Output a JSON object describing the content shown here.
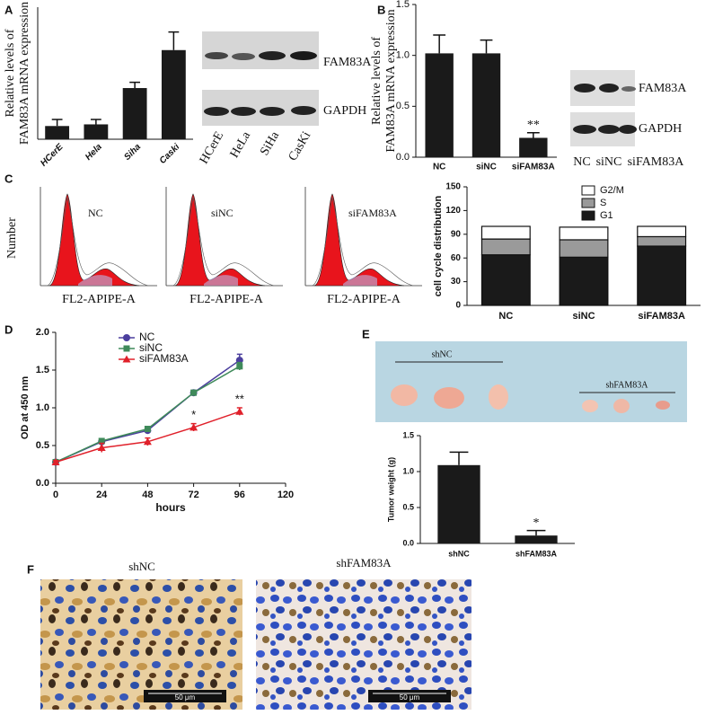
{
  "panel_labels": [
    "A",
    "B",
    "C",
    "D",
    "E",
    "F"
  ],
  "blots": [
    {
      "labels": [
        "FAM83A",
        "GAPDH"
      ],
      "lanes": [
        "HCerE",
        "HeLa",
        "SiHa",
        "CasKi"
      ]
    },
    {
      "labels": [
        "FAM83A",
        "GAPDH"
      ],
      "lanes": [
        "NC",
        "siNC",
        "siFAM83A"
      ]
    }
  ],
  "flow": {
    "y_label": "Number",
    "x_label": "FL2-APIPE-A",
    "samples": [
      "NC",
      "siNC",
      "siFAM83A"
    ]
  },
  "tumor_photo": {
    "groups": [
      "shNC",
      "shFAM83A"
    ]
  },
  "ihc": {
    "groups": [
      "shNC",
      "shFAM83A"
    ],
    "scale_bar": "50 μm"
  },
  "chart_data": [
    {
      "type": "bar",
      "y_label": [
        "Relative levels of",
        "FAM83A mRNA expression"
      ],
      "categories": [
        "HCerE",
        "Hela",
        "Siha",
        "Caski"
      ],
      "values": [
        0.8,
        0.9,
        3.1,
        5.4
      ],
      "errors": [
        0.4,
        0.3,
        0.35,
        1.1
      ],
      "color": "#1a1a1a",
      "ylim": [
        0,
        8
      ]
    },
    {
      "type": "bar",
      "y_label": [
        "Relative levels of",
        "FAM83A mRNA expression"
      ],
      "categories": [
        "NC",
        "siNC",
        "siFAM83A"
      ],
      "values": [
        1.02,
        1.02,
        0.19
      ],
      "errors": [
        0.18,
        0.13,
        0.05
      ],
      "color": "#1a1a1a",
      "ylim": [
        0,
        1.5
      ],
      "yticks": [
        {
          "value": 0,
          "label": "0.0"
        },
        0.5,
        {
          "value": 1,
          "label": "1.0"
        },
        1.5
      ],
      "annotations": [
        {
          "text": "**",
          "category": "siFAM83A"
        }
      ]
    },
    {
      "type": "stacked_bar",
      "y_label": "cell cycle distribution",
      "categories": [
        "NC",
        "siNC",
        "siFAM83A"
      ],
      "series": [
        {
          "name": "G1",
          "color": "#1a1a1a",
          "values": [
            64,
            61,
            75
          ]
        },
        {
          "name": "S",
          "color": "#9a9a9a",
          "values": [
            20,
            22,
            12
          ]
        },
        {
          "name": "G2/M",
          "color": "#ffffff",
          "values": [
            16,
            16,
            13
          ]
        }
      ],
      "ylim": [
        0,
        150
      ],
      "yticks": [
        0,
        30,
        60,
        90,
        120,
        150
      ],
      "legend": "top"
    },
    {
      "type": "line",
      "y_label": "OD at 450 nm",
      "x_label": "hours",
      "x": [
        0,
        24,
        48,
        72,
        96
      ],
      "series": [
        {
          "name": "NC",
          "color": "#4b3f9e",
          "marker": "circle",
          "values": [
            0.28,
            0.55,
            0.7,
            1.2,
            1.63
          ],
          "errors": [
            0.02,
            0.03,
            0.04,
            0.03,
            0.08
          ]
        },
        {
          "name": "siNC",
          "color": "#3f8a5a",
          "marker": "square",
          "values": [
            0.28,
            0.56,
            0.72,
            1.2,
            1.55
          ],
          "errors": [
            0.02,
            0.03,
            0.03,
            0.03,
            0.05
          ]
        },
        {
          "name": "siFAM83A",
          "color": "#e0202a",
          "marker": "triangle",
          "values": [
            0.28,
            0.47,
            0.55,
            0.74,
            0.95
          ],
          "errors": [
            0.02,
            0.06,
            0.05,
            0.05,
            0.05
          ]
        }
      ],
      "xlim": [
        0,
        120
      ],
      "xticks": [
        0,
        24,
        48,
        72,
        96,
        120
      ],
      "ylim": [
        0,
        2
      ],
      "yticks": [
        {
          "value": 0,
          "label": "0.0"
        },
        0.5,
        {
          "value": 1,
          "label": "1.0"
        },
        1.5,
        {
          "value": 2,
          "label": "2.0"
        }
      ],
      "legend": "top-left",
      "annotations": [
        {
          "text": "*",
          "x": 72,
          "series": "siFAM83A"
        },
        {
          "text": "**",
          "x": 96,
          "series": "siFAM83A"
        }
      ]
    },
    {
      "type": "bar",
      "y_label": "Tumor weight (g)",
      "categories": [
        "shNC",
        "shFAM83A"
      ],
      "values": [
        1.09,
        0.11
      ],
      "errors": [
        0.18,
        0.07
      ],
      "color": "#1a1a1a",
      "ylim": [
        0,
        1.5
      ],
      "yticks": [
        {
          "value": 0,
          "label": "0.0"
        },
        0.5,
        {
          "value": 1,
          "label": "1.0"
        },
        1.5
      ],
      "annotations": [
        {
          "text": "*",
          "category": "shFAM83A"
        }
      ]
    }
  ]
}
